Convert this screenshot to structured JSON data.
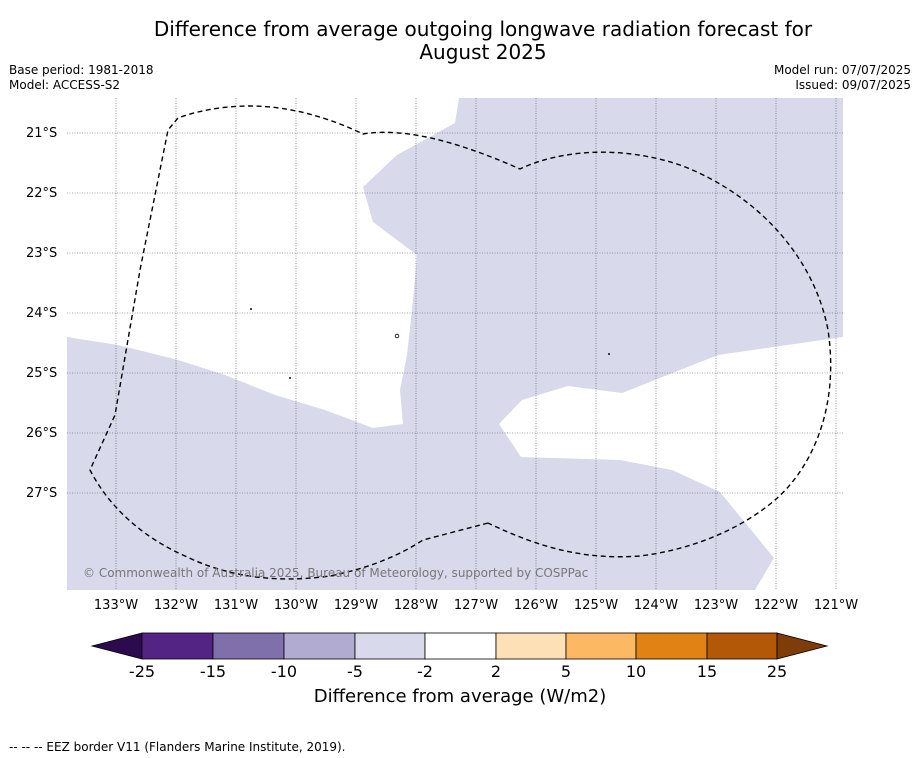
{
  "title_line1": "Difference from average outgoing longwave radiation forecast for",
  "title_line2": "August 2025",
  "base_period": "Base period: 1981-2018",
  "model": "Model: ACCESS-S2",
  "model_run": "Model run: 07/07/2025",
  "issued": "Issued: 09/07/2025",
  "copyright": "© Commonwealth of Australia 2025, Bureau of Meteorology, supported by COSPPac",
  "footnote": "--  --  -- EEZ border V11 (Flanders Marine Institute, 2019).",
  "x_ticks": [
    "133°W",
    "132°W",
    "131°W",
    "130°W",
    "129°W",
    "128°W",
    "127°W",
    "126°W",
    "125°W",
    "124°W",
    "123°W",
    "122°W",
    "121°W"
  ],
  "y_ticks": [
    "21°S",
    "22°S",
    "23°S",
    "24°S",
    "25°S",
    "26°S",
    "27°S"
  ],
  "colorbar": {
    "label": "Difference from average (W/m2)",
    "ticks": [
      "-25",
      "-15",
      "-10",
      "-5",
      "-2",
      "2",
      "5",
      "10",
      "15",
      "25"
    ],
    "colors": [
      "#2d0a4e",
      "#542485",
      "#7f6fab",
      "#b1aad1",
      "#d8d9ea",
      "#ffffff",
      "#fee0b6",
      "#fdb863",
      "#e08214",
      "#b35806",
      "#7f3b08"
    ]
  }
}
